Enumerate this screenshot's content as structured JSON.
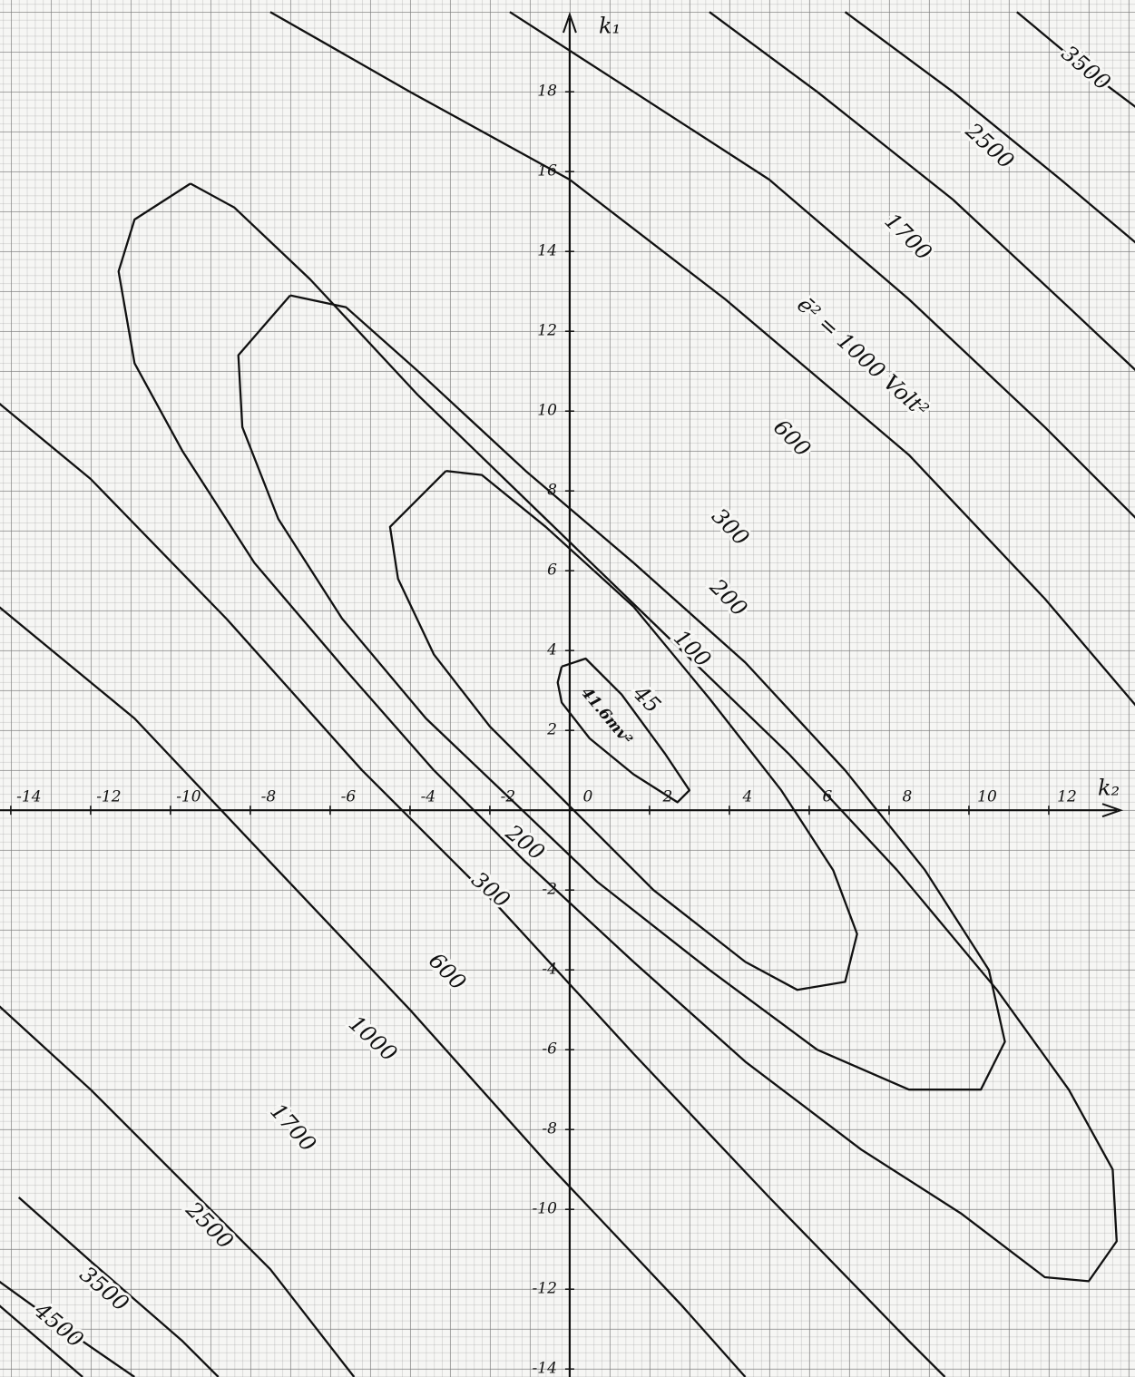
{
  "chart_data": {
    "type": "contour",
    "x_label": "k₂",
    "y_label": "k₁",
    "xlim": [
      -14.27,
      14.16
    ],
    "ylim": [
      -14.2,
      20.3
    ],
    "xticks": [
      -14,
      -12,
      -10,
      -8,
      -6,
      -4,
      -2,
      0,
      2,
      4,
      6,
      8,
      10,
      12
    ],
    "yticks": [
      -14,
      -12,
      -10,
      -8,
      -6,
      -4,
      -2,
      2,
      4,
      6,
      8,
      10,
      12,
      14,
      16,
      18
    ],
    "minimum_label": "41.6mv²",
    "annotation": "ē² = 1000 Volt²",
    "line_color": "#111111",
    "contours": [
      {
        "level": 45,
        "x": [
          -0.2,
          0.4,
          1.3,
          2.4,
          3.0,
          2.7,
          1.6,
          0.5,
          -0.2,
          -0.3,
          -0.2
        ],
        "y": [
          3.6,
          3.8,
          2.9,
          1.4,
          0.5,
          0.2,
          0.9,
          1.8,
          2.7,
          3.2,
          3.6
        ]
      },
      {
        "level": 100,
        "x": [
          -3.1,
          -4.5,
          -4.3,
          -3.4,
          -2.0,
          -0.2,
          2.1,
          4.4,
          5.7,
          6.9,
          7.2,
          6.6,
          5.3,
          3.5,
          1.6,
          -0.6,
          -2.2,
          -3.1
        ],
        "y": [
          8.5,
          7.1,
          5.8,
          3.9,
          2.1,
          0.3,
          -2.0,
          -3.8,
          -4.5,
          -4.3,
          -3.1,
          -1.5,
          0.5,
          2.8,
          5.1,
          7.1,
          8.4,
          8.5
        ]
      },
      {
        "level": 200,
        "x": [
          -7.0,
          -8.3,
          -8.2,
          -7.3,
          -5.7,
          -3.6,
          -1.5,
          0.7,
          3.5,
          6.2,
          8.5,
          10.3,
          10.9,
          10.5,
          8.9,
          6.9,
          4.4,
          1.6,
          -1.1,
          -3.8,
          -5.6,
          -7.0
        ],
        "y": [
          12.9,
          11.4,
          9.6,
          7.3,
          4.8,
          2.3,
          0.3,
          -1.8,
          -4.0,
          -6.0,
          -7.0,
          -7.0,
          -5.8,
          -4.0,
          -1.5,
          1.0,
          3.7,
          6.2,
          8.5,
          11.0,
          12.6,
          12.9
        ]
      },
      {
        "level": 300,
        "x": [
          -9.5,
          -10.9,
          -11.3,
          -10.9,
          -9.7,
          -7.9,
          -5.6,
          -3.4,
          -1.1,
          1.6,
          4.4,
          7.3,
          9.8,
          11.9,
          13.0,
          13.7,
          13.6,
          12.5,
          10.7,
          8.2,
          5.5,
          2.5,
          -0.6,
          -3.8,
          -6.5,
          -8.4,
          -9.5
        ],
        "y": [
          15.7,
          14.8,
          13.5,
          11.2,
          9.0,
          6.2,
          3.5,
          1.0,
          -1.3,
          -3.8,
          -6.3,
          -8.5,
          -10.1,
          -11.7,
          -11.8,
          -10.8,
          -9.0,
          -7.0,
          -4.5,
          -1.5,
          1.4,
          4.3,
          7.3,
          10.4,
          13.3,
          15.1,
          15.7
        ]
      },
      {
        "level": 600,
        "x": [
          -7.5,
          -4.0,
          0,
          3.9,
          8.5,
          11.9,
          14.2,
          null,
          -14.3,
          -12.0,
          -8.6,
          -5.2,
          -1.8,
          1.6,
          5.0,
          8.5,
          9.4
        ],
        "y": [
          20.0,
          18.0,
          15.8,
          12.8,
          8.9,
          5.3,
          2.6,
          null,
          10.2,
          8.3,
          4.8,
          1.0,
          -2.4,
          -6.1,
          -9.7,
          -13.3,
          -14.2
        ]
      },
      {
        "level": 1000,
        "x": [
          -1.5,
          1.6,
          5.0,
          8.5,
          11.9,
          14.2,
          null,
          -14.3,
          -10.9,
          -7.5,
          -4.0,
          -0.6,
          2.8,
          4.4
        ],
        "y": [
          20.0,
          18.0,
          15.8,
          12.8,
          9.6,
          7.3,
          null,
          5.1,
          2.3,
          -1.3,
          -5.0,
          -8.8,
          -12.4,
          -14.2
        ]
      },
      {
        "level": 1700,
        "x": [
          3.5,
          6.2,
          9.6,
          12.5,
          14.2,
          null,
          -14.3,
          -12.0,
          -9.7,
          -7.5,
          -5.4
        ],
        "y": [
          20.0,
          18.0,
          15.3,
          12.6,
          11.0,
          null,
          -4.9,
          -7.0,
          -9.3,
          -11.5,
          -14.2
        ]
      },
      {
        "level": 2500,
        "x": [
          6.9,
          9.6,
          12.3,
          14.2,
          null,
          -13.8,
          -12.0,
          -9.7,
          -8.8
        ],
        "y": [
          20.0,
          18.0,
          15.8,
          14.2,
          null,
          -9.7,
          -11.3,
          -13.3,
          -14.2
        ]
      },
      {
        "level": 3500,
        "x": [
          11.2,
          13.0,
          14.2,
          null,
          -14.3,
          -12.5,
          -10.9
        ],
        "y": [
          20.0,
          18.5,
          17.6,
          null,
          -11.8,
          -13.1,
          -14.2
        ]
      },
      {
        "level": 4500,
        "x": [
          -14.3,
          -12.9,
          -12.2
        ],
        "y": [
          -12.4,
          -13.6,
          -14.2
        ]
      }
    ]
  }
}
